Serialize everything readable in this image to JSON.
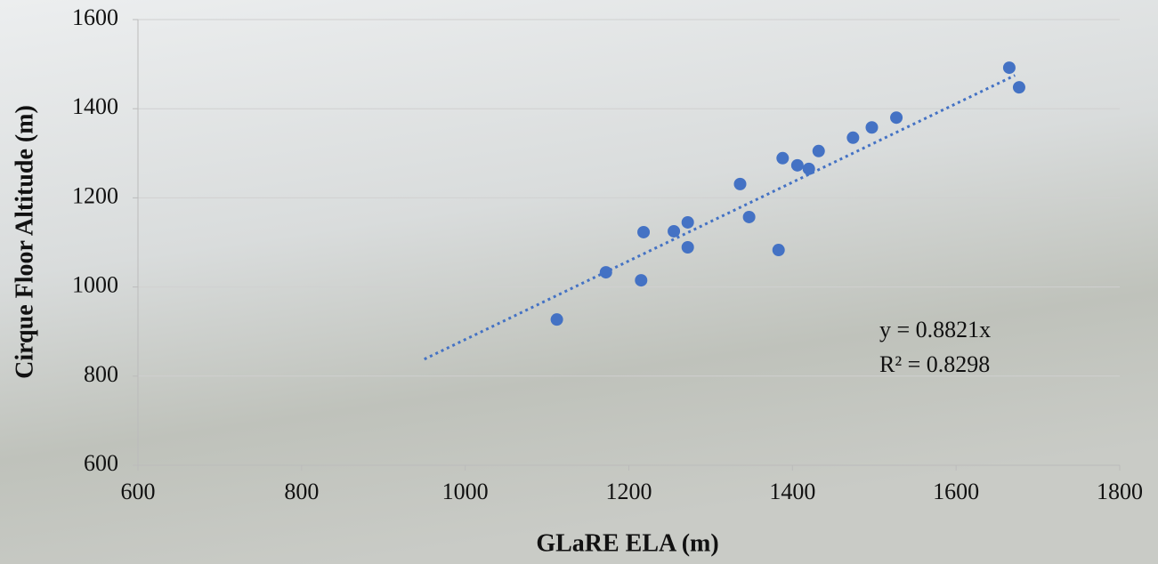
{
  "chart_data": {
    "type": "scatter",
    "x_label": "GLaRE  ELA (m)",
    "y_label": "Cirque Floor Altitude (m)",
    "series": [
      {
        "color": "#4472c4",
        "x": [
          1112,
          1172,
          1215,
          1218,
          1255,
          1272,
          1272,
          1336,
          1347,
          1383,
          1388,
          1406,
          1420,
          1432,
          1474,
          1497,
          1527,
          1665,
          1677
        ],
        "values": [
          927,
          1033,
          1015,
          1123,
          1125,
          1145,
          1089,
          1231,
          1157,
          1083,
          1289,
          1273,
          1265,
          1305,
          1335,
          1358,
          1380,
          1492,
          1448
        ]
      }
    ],
    "trendline": {
      "slope": 0.8821,
      "x_range": [
        950,
        1672
      ],
      "color": "#4472c4"
    },
    "equation_label": "y = 0.8821x",
    "r2_label": "R² = 0.8298",
    "xlim": [
      600,
      1800
    ],
    "xticks": [
      600,
      800,
      1000,
      1200,
      1400,
      1600,
      1800
    ],
    "ylim": [
      600,
      1600
    ],
    "yticks": [
      600,
      800,
      1000,
      1200,
      1400,
      1600
    ],
    "grid": true
  }
}
